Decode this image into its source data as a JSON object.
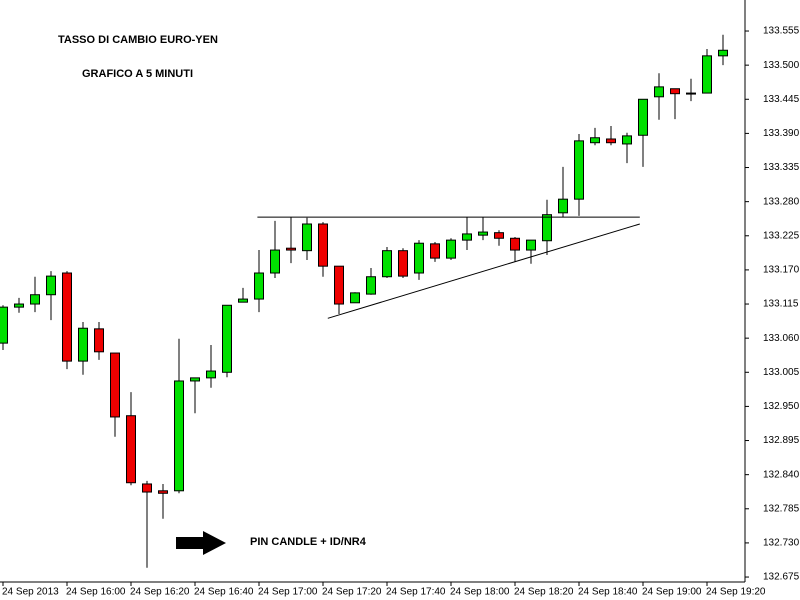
{
  "chart_data": {
    "type": "candlestick",
    "title": "TASSO DI CAMBIO EURO-YEN",
    "subtitle": "GRAFICO A 5 MINUTI",
    "annotations": [
      {
        "text": "PIN CANDLE + ID/NR4"
      }
    ],
    "categories": [
      "24 Sep 2013",
      null,
      null,
      null,
      "24 Sep 16:00",
      null,
      null,
      null,
      "24 Sep 16:20",
      null,
      null,
      null,
      "24 Sep 16:40",
      null,
      null,
      null,
      "24 Sep 17:00",
      null,
      null,
      null,
      "24 Sep 17:20",
      null,
      null,
      null,
      "24 Sep 17:40",
      null,
      null,
      null,
      "24 Sep 18:00",
      null,
      null,
      null,
      "24 Sep 18:20",
      null,
      null,
      null,
      "24 Sep 18:40",
      null,
      null,
      null,
      "24 Sep 19:00",
      null,
      null,
      null,
      "24 Sep 19:20",
      null
    ],
    "open": [
      133.052,
      133.11,
      133.115,
      133.13,
      133.165,
      133.023,
      133.075,
      133.036,
      132.935,
      132.825,
      132.814,
      132.814,
      132.991,
      132.996,
      133.005,
      133.118,
      133.123,
      133.165,
      133.205,
      133.201,
      133.244,
      133.176,
      133.117,
      133.131,
      133.159,
      133.201,
      133.165,
      133.212,
      133.189,
      133.218,
      133.226,
      133.23,
      133.221,
      133.202,
      133.217,
      133.262,
      133.284,
      133.375,
      133.381,
      133.373,
      133.387,
      133.449,
      133.462,
      133.455,
      133.455,
      133.515
    ],
    "high": [
      133.113,
      133.125,
      133.159,
      133.168,
      133.168,
      133.086,
      133.086,
      133.036,
      132.973,
      132.83,
      132.825,
      133.059,
      132.996,
      133.049,
      133.113,
      133.141,
      133.202,
      133.249,
      133.255,
      133.254,
      133.247,
      133.176,
      133.134,
      133.173,
      133.207,
      133.205,
      133.218,
      133.215,
      133.221,
      133.255,
      133.255,
      133.234,
      133.223,
      133.218,
      133.283,
      133.336,
      133.389,
      133.399,
      133.402,
      133.391,
      133.445,
      133.487,
      133.462,
      133.478,
      133.526,
      133.549
    ],
    "low": [
      133.041,
      133.101,
      133.102,
      133.089,
      133.01,
      133.001,
      133.025,
      132.901,
      132.823,
      132.69,
      132.769,
      132.81,
      132.939,
      132.98,
      132.997,
      133.118,
      133.102,
      133.157,
      133.181,
      133.186,
      133.159,
      133.099,
      133.117,
      133.13,
      133.157,
      133.157,
      133.154,
      133.183,
      133.186,
      133.202,
      133.218,
      133.209,
      133.183,
      133.18,
      133.194,
      133.255,
      133.257,
      133.371,
      133.371,
      133.342,
      133.336,
      133.412,
      133.413,
      133.442,
      133.455,
      133.5
    ],
    "close": [
      133.11,
      133.115,
      133.13,
      133.16,
      133.023,
      133.076,
      133.038,
      132.933,
      132.827,
      132.812,
      132.81,
      132.991,
      132.996,
      133.007,
      133.113,
      133.123,
      133.165,
      133.202,
      133.202,
      133.244,
      133.176,
      133.115,
      133.133,
      133.159,
      133.201,
      133.16,
      133.213,
      133.189,
      133.218,
      133.228,
      133.231,
      133.221,
      133.202,
      133.218,
      133.259,
      133.284,
      133.378,
      133.383,
      133.375,
      133.386,
      133.445,
      133.465,
      133.454,
      133.455,
      133.515,
      133.524
    ],
    "colors": {
      "up": "#00e000",
      "down": "#ee0000",
      "flat": "#000000"
    },
    "trendlines": [
      {
        "x": [
          15.9,
          39.8
        ],
        "y": [
          133.255,
          133.255
        ]
      },
      {
        "x": [
          20.3,
          39.8
        ],
        "y": [
          133.092,
          133.244
        ]
      }
    ],
    "ylim": [
      132.667,
      133.605
    ],
    "yticks": [
      133.555,
      {
        "value": 133.5,
        "label": "133.500"
      },
      133.445,
      {
        "value": 133.39,
        "label": "133.390"
      },
      133.335,
      {
        "value": 133.28,
        "label": "133.280"
      },
      133.225,
      {
        "value": 133.17,
        "label": "133.170"
      },
      133.115,
      {
        "value": 133.06,
        "label": "133.060"
      },
      133.005,
      {
        "value": 132.95,
        "label": "132.950"
      },
      132.895,
      {
        "value": 132.84,
        "label": "132.840"
      },
      132.785,
      {
        "value": 132.73,
        "label": "132.730"
      },
      132.675
    ],
    "grid": false
  }
}
